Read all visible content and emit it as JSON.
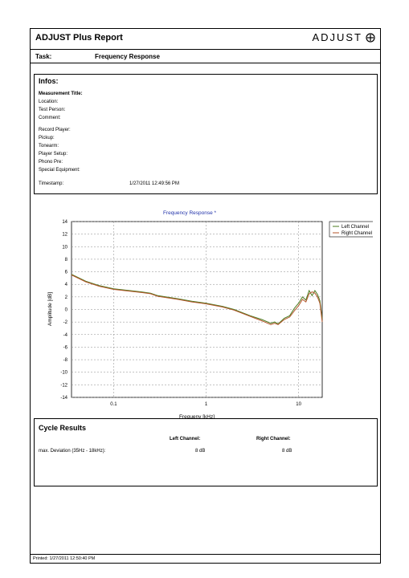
{
  "report": {
    "title": "ADJUST Plus Report",
    "brand": "ADJUST",
    "task_label": "Task:",
    "task_value": "Frequency Response"
  },
  "infos": {
    "title": "Infos:",
    "fields": [
      {
        "label": "Measurement Title:",
        "value": ""
      },
      {
        "label": "Location:",
        "value": ""
      },
      {
        "label": "Test Person:",
        "value": ""
      },
      {
        "label": "Comment:",
        "value": ""
      },
      {
        "label": "Record Player:",
        "value": ""
      },
      {
        "label": "Pickup:",
        "value": ""
      },
      {
        "label": "Tonearm:",
        "value": ""
      },
      {
        "label": "Player Setup:",
        "value": ""
      },
      {
        "label": "Phono Pre:",
        "value": ""
      },
      {
        "label": "Special Equipment:",
        "value": ""
      },
      {
        "label": "Timestamp:",
        "value": "1/27/2011 12:49:56 PM"
      }
    ]
  },
  "chart_data": {
    "type": "line",
    "title": "Frequency Response *",
    "xlabel": "Frequeny [kHz]",
    "ylabel": "Amplitude [dB]",
    "x_scale": "log",
    "xlim": [
      0.035,
      18
    ],
    "ylim": [
      -14,
      14
    ],
    "x_ticks": [
      0.1,
      1,
      10
    ],
    "x_tick_labels": [
      "0.1",
      "1",
      "10"
    ],
    "y_ticks": [
      14,
      12,
      10,
      8,
      6,
      4,
      2,
      0,
      -2,
      -4,
      -6,
      -8,
      -10,
      -12,
      -14
    ],
    "grid": true,
    "legend_position": "top-right",
    "series": [
      {
        "name": "Left Channel",
        "color": "#4a7a1e",
        "x": [
          0.035,
          0.05,
          0.07,
          0.1,
          0.15,
          0.2,
          0.25,
          0.3,
          0.5,
          0.7,
          1,
          1.5,
          2,
          3,
          4,
          5,
          5.5,
          6,
          7,
          8,
          9,
          10,
          11,
          12,
          13,
          14,
          15,
          16,
          17,
          18
        ],
        "y": [
          5.6,
          4.5,
          3.8,
          3.3,
          3.0,
          2.8,
          2.6,
          2.2,
          1.7,
          1.3,
          1.0,
          0.5,
          0.0,
          -1.0,
          -1.6,
          -2.2,
          -2.0,
          -2.3,
          -1.4,
          -1.0,
          0.2,
          1.0,
          2.0,
          1.5,
          3.0,
          2.2,
          3.0,
          2.4,
          1.4,
          -1.5
        ]
      },
      {
        "name": "Right Channel",
        "color": "#b5542a",
        "x": [
          0.035,
          0.05,
          0.07,
          0.1,
          0.15,
          0.2,
          0.25,
          0.3,
          0.5,
          0.7,
          1,
          1.5,
          2,
          3,
          4,
          5,
          5.5,
          6,
          7,
          8,
          9,
          10,
          11,
          12,
          13,
          14,
          15,
          16,
          17,
          18
        ],
        "y": [
          5.5,
          4.4,
          3.7,
          3.2,
          2.9,
          2.7,
          2.5,
          2.1,
          1.6,
          1.2,
          0.9,
          0.4,
          -0.1,
          -1.1,
          -1.8,
          -2.4,
          -2.2,
          -2.4,
          -1.6,
          -1.2,
          -0.2,
          0.6,
          1.6,
          1.2,
          2.5,
          2.8,
          2.6,
          2.0,
          1.0,
          -2.0
        ]
      }
    ]
  },
  "cycle": {
    "title": "Cycle Results",
    "left_header": "Left Channel:",
    "right_header": "Right Channel:",
    "row_label": "max. Deviation (35Hz - 18kHz):",
    "left_value": "8 dB",
    "right_value": "8 dB"
  },
  "footer": {
    "printed": "Printed: 1/27/2011 12:50:40 PM"
  }
}
